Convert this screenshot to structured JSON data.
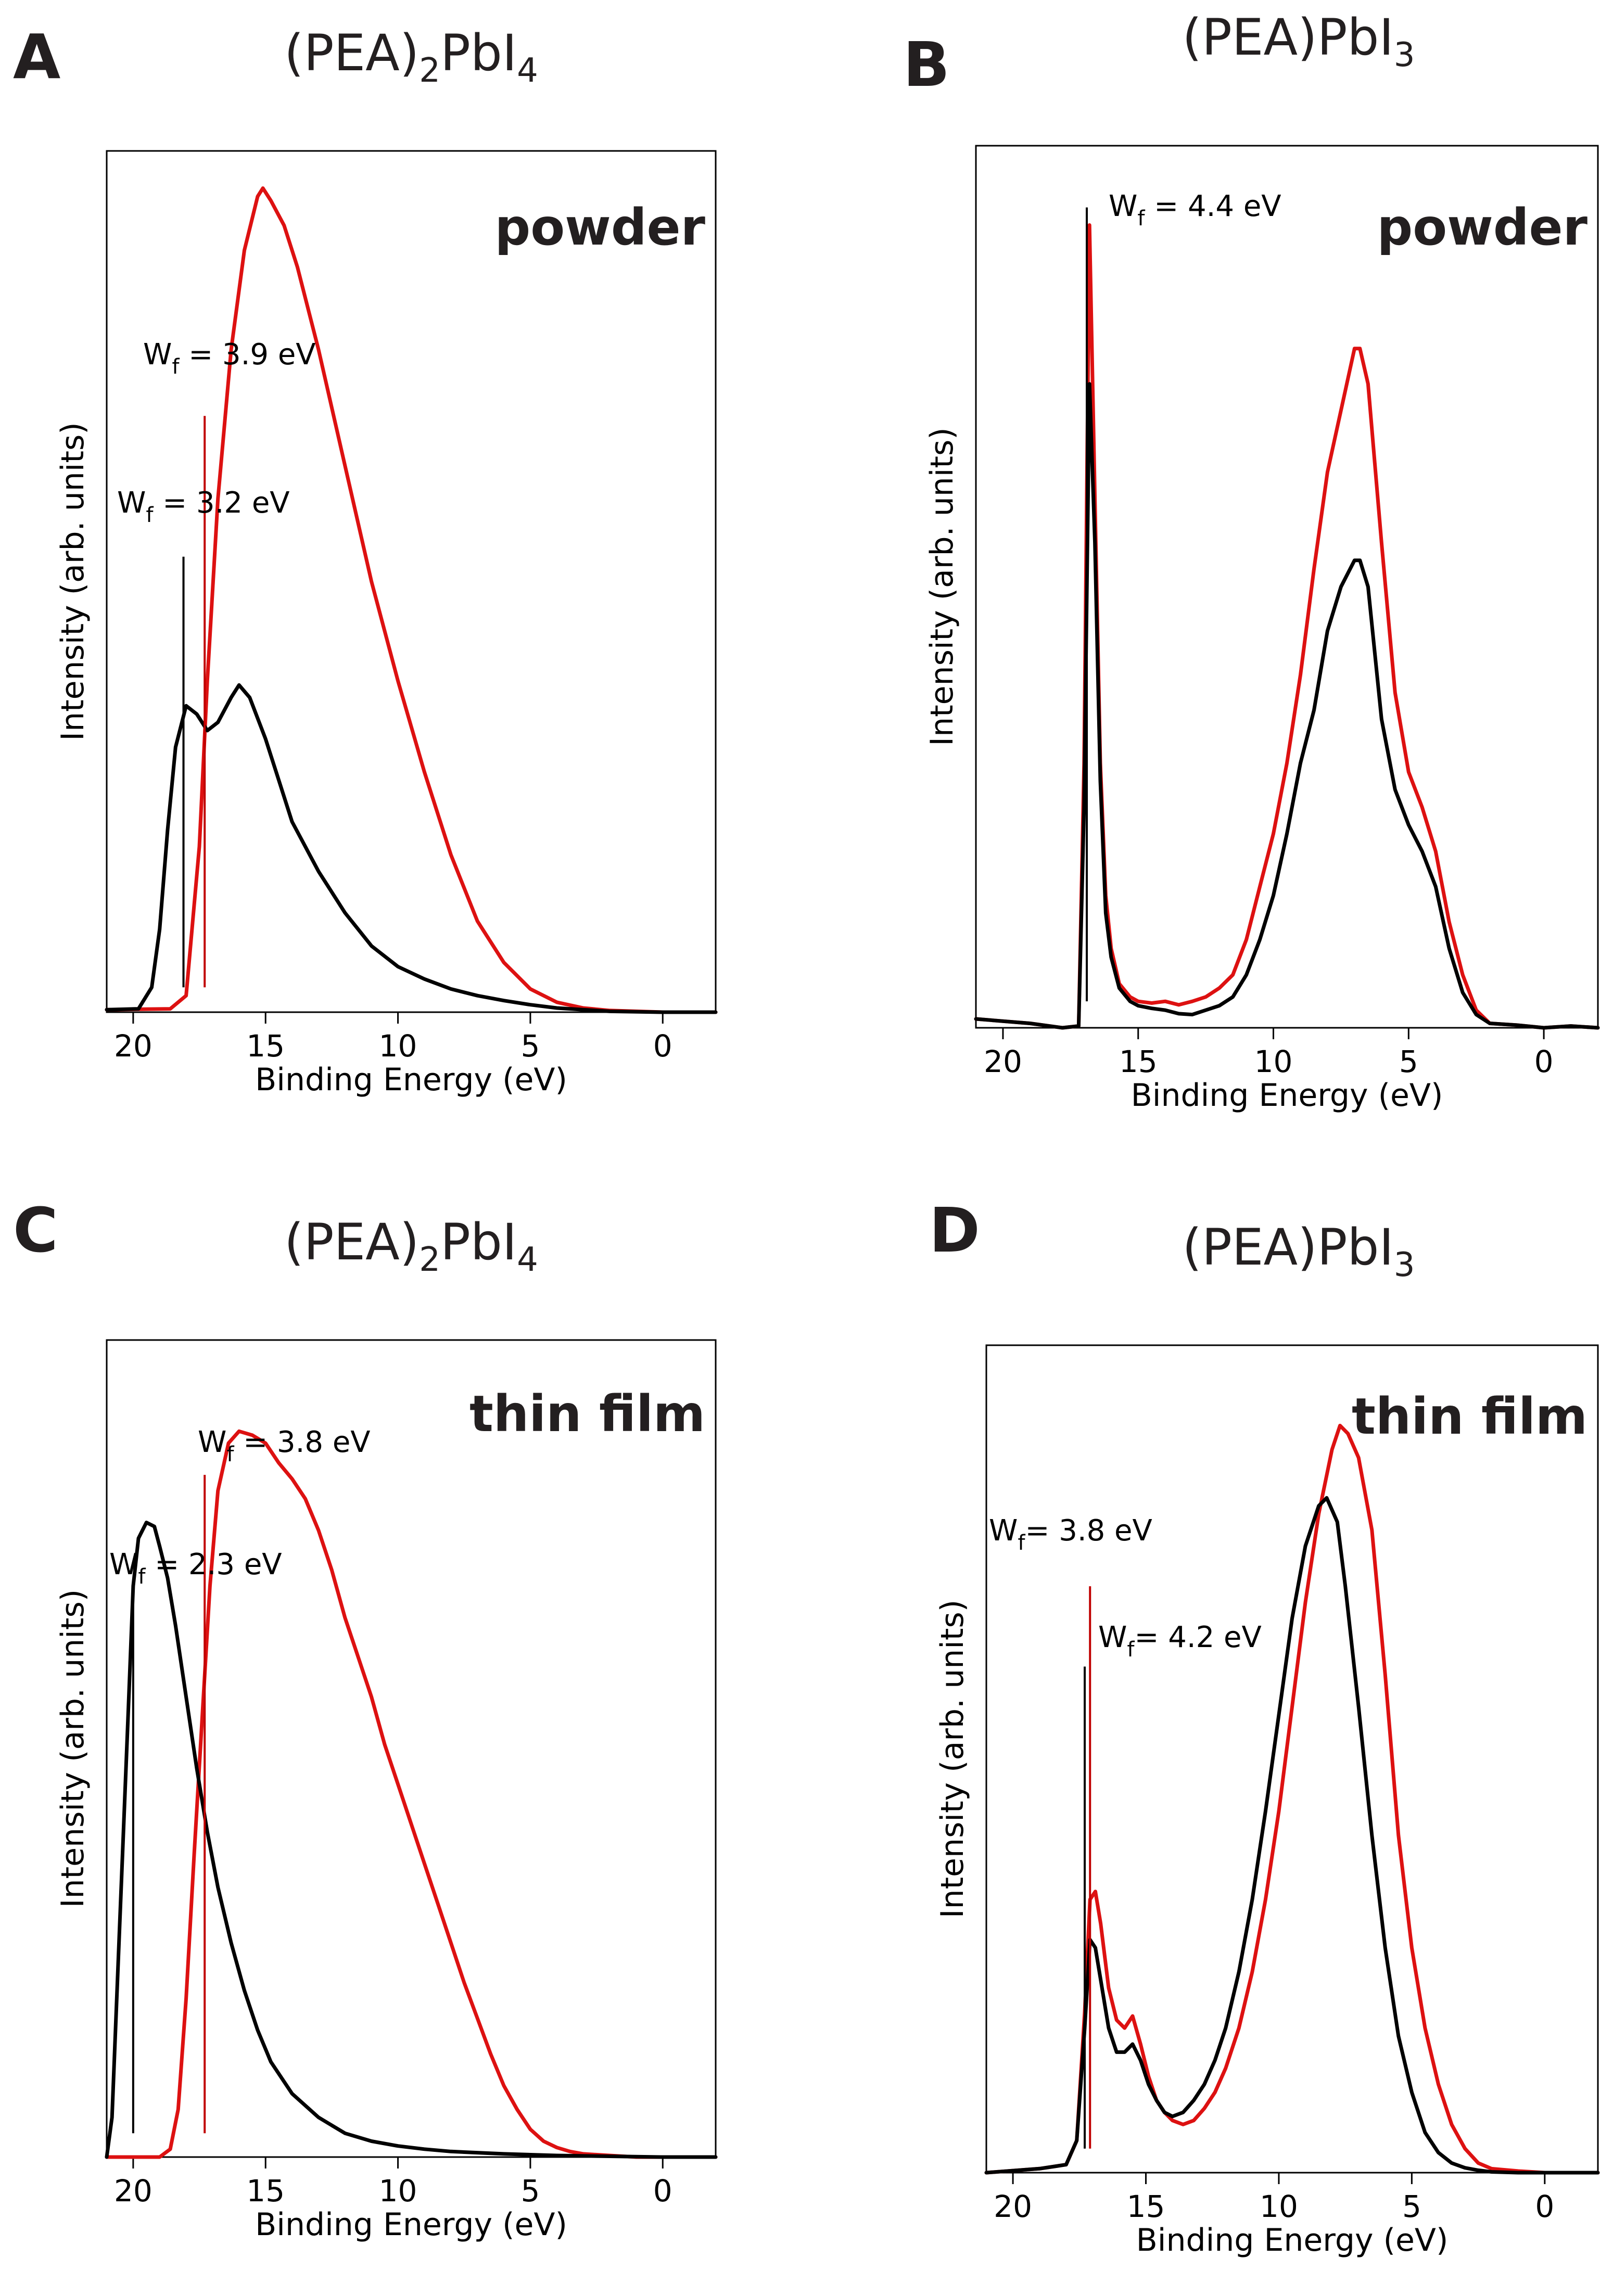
{
  "chart_data": [
    {
      "panel": "A",
      "type": "line",
      "title": "(PEA)2PbI4",
      "title_parts": [
        "(PEA)",
        "2",
        "PbI",
        "4"
      ],
      "sample": "powder",
      "xlabel": "Binding Energy (eV)",
      "ylabel": "Intensity (arb. units)",
      "xlim": [
        21,
        -2
      ],
      "ylim": [
        0,
        1.04
      ],
      "xticks": [
        20,
        15,
        10,
        5,
        0
      ],
      "x_reversed": true,
      "grid": false,
      "annotations": [
        {
          "text": "Wf = 3.9 eV",
          "parts": [
            "W",
            "f",
            " = 3.9 eV"
          ],
          "x": 17.3,
          "color": "#c00000",
          "line_top": 0.72
        },
        {
          "text": "Wf = 3.2 eV",
          "parts": [
            "W",
            "f",
            " = 3.2 eV"
          ],
          "x": 18.1,
          "color": "#000000",
          "line_top": 0.55
        }
      ],
      "series": [
        {
          "color": "#dd1111",
          "x": [
            21,
            18.6,
            18.0,
            17.5,
            17.2,
            16.8,
            16.3,
            15.8,
            15.3,
            15.1,
            14.8,
            14.3,
            13.8,
            13.0,
            12.0,
            11.0,
            10.0,
            9.0,
            8.0,
            7.0,
            6.0,
            5.0,
            4.0,
            3.0,
            2.0,
            0.0,
            -2.0
          ],
          "y": [
            0.003,
            0.004,
            0.02,
            0.2,
            0.4,
            0.62,
            0.8,
            0.92,
            0.985,
            0.995,
            0.98,
            0.95,
            0.9,
            0.8,
            0.66,
            0.52,
            0.4,
            0.29,
            0.19,
            0.11,
            0.06,
            0.028,
            0.012,
            0.005,
            0.002,
            0.0,
            0.0
          ]
        },
        {
          "color": "#000000",
          "x": [
            21,
            19.8,
            19.3,
            19.0,
            18.7,
            18.4,
            18.0,
            17.6,
            17.2,
            16.8,
            16.3,
            16.0,
            15.6,
            15.0,
            14.5,
            14.0,
            13.0,
            12.0,
            11.0,
            10.0,
            9.0,
            8.0,
            7.0,
            6.0,
            5.0,
            4.0,
            3.0,
            2.0,
            0.0,
            -2.0
          ],
          "y": [
            0.003,
            0.004,
            0.03,
            0.1,
            0.22,
            0.32,
            0.37,
            0.36,
            0.34,
            0.35,
            0.38,
            0.395,
            0.38,
            0.33,
            0.28,
            0.23,
            0.17,
            0.12,
            0.08,
            0.055,
            0.04,
            0.028,
            0.02,
            0.014,
            0.009,
            0.005,
            0.003,
            0.001,
            0.0,
            0.0
          ]
        }
      ]
    },
    {
      "panel": "B",
      "type": "line",
      "title": "(PEA)PbI3",
      "title_parts": [
        "(PEA)PbI",
        "3"
      ],
      "sample": "powder",
      "xlabel": "Binding Energy (eV)",
      "ylabel": "Intensity (arb. units)",
      "xlim": [
        21,
        -2
      ],
      "ylim": [
        0,
        1.0
      ],
      "xticks": [
        20,
        15,
        10,
        5,
        0
      ],
      "x_reversed": true,
      "grid": false,
      "annotations": [
        {
          "text": "Wf = 4.4 eV",
          "parts": [
            "W",
            "f",
            " = 4.4 eV"
          ],
          "x": 16.9,
          "color": "#000000",
          "line_top": 0.93
        }
      ],
      "series": [
        {
          "color": "#dd1111",
          "x": [
            21,
            19.0,
            17.8,
            17.2,
            17.0,
            16.8,
            16.6,
            16.4,
            16.2,
            16.0,
            15.7,
            15.3,
            15.0,
            14.5,
            14.0,
            13.5,
            13.0,
            12.5,
            12.0,
            11.5,
            11.0,
            10.5,
            10.0,
            9.5,
            9.0,
            8.5,
            8.0,
            7.5,
            7.0,
            6.8,
            6.5,
            6.0,
            5.5,
            5.0,
            4.5,
            4.0,
            3.5,
            3.0,
            2.5,
            2.0,
            1.0,
            0.0,
            -1.0,
            -2.0
          ],
          "y": [
            0.01,
            0.005,
            0.0,
            0.002,
            0.3,
            0.91,
            0.6,
            0.3,
            0.15,
            0.09,
            0.05,
            0.035,
            0.03,
            0.028,
            0.03,
            0.026,
            0.03,
            0.035,
            0.045,
            0.06,
            0.1,
            0.16,
            0.22,
            0.3,
            0.4,
            0.52,
            0.63,
            0.7,
            0.77,
            0.77,
            0.73,
            0.55,
            0.38,
            0.29,
            0.25,
            0.2,
            0.12,
            0.06,
            0.02,
            0.005,
            0.003,
            0.0,
            0.002,
            0.0
          ]
        },
        {
          "color": "#000000",
          "x": [
            21,
            19.0,
            17.8,
            17.2,
            17.0,
            16.8,
            16.6,
            16.4,
            16.2,
            16.0,
            15.7,
            15.3,
            15.0,
            14.5,
            14.0,
            13.5,
            13.0,
            12.5,
            12.0,
            11.5,
            11.0,
            10.5,
            10.0,
            9.5,
            9.0,
            8.5,
            8.0,
            7.5,
            7.0,
            6.8,
            6.5,
            6.0,
            5.5,
            5.0,
            4.5,
            4.0,
            3.5,
            3.0,
            2.5,
            2.0,
            1.0,
            0.0,
            -1.0,
            -2.0
          ],
          "y": [
            0.01,
            0.005,
            0.0,
            0.002,
            0.25,
            0.73,
            0.55,
            0.28,
            0.13,
            0.08,
            0.045,
            0.03,
            0.025,
            0.022,
            0.02,
            0.016,
            0.015,
            0.02,
            0.025,
            0.035,
            0.06,
            0.1,
            0.15,
            0.22,
            0.3,
            0.36,
            0.45,
            0.5,
            0.53,
            0.53,
            0.5,
            0.35,
            0.27,
            0.23,
            0.2,
            0.16,
            0.09,
            0.04,
            0.015,
            0.005,
            0.003,
            0.0,
            0.002,
            0.0
          ]
        }
      ]
    },
    {
      "panel": "C",
      "type": "line",
      "title": "(PEA)2PbI4",
      "title_parts": [
        "(PEA)",
        "2",
        "PbI",
        "4"
      ],
      "sample": "thin film",
      "xlabel": "Binding Energy (eV)",
      "ylabel": "Intensity (arb. units)",
      "xlim": [
        21,
        -2
      ],
      "ylim": [
        0,
        1.03
      ],
      "xticks": [
        20,
        15,
        10,
        5,
        0
      ],
      "x_reversed": true,
      "grid": false,
      "annotations": [
        {
          "text": "Wf = 3.8 eV",
          "parts": [
            "W",
            "f",
            " = 3.8 eV"
          ],
          "x": 17.3,
          "color": "#c00000",
          "line_top": 0.86
        },
        {
          "text": "Wf = 2.3 eV",
          "parts": [
            "W",
            "f",
            " = 2.3 eV"
          ],
          "x": 20.0,
          "color": "#000000",
          "line_top": 0.7
        }
      ],
      "series": [
        {
          "color": "#dd1111",
          "x": [
            21,
            19.0,
            18.6,
            18.3,
            18.0,
            17.7,
            17.4,
            17.1,
            16.8,
            16.4,
            16.0,
            15.5,
            15.0,
            14.5,
            14.0,
            13.5,
            13.0,
            12.5,
            12.0,
            11.5,
            11.0,
            10.5,
            10.0,
            9.5,
            9.0,
            8.5,
            8.0,
            7.5,
            7.0,
            6.5,
            6.0,
            5.5,
            5.0,
            4.5,
            4.0,
            3.5,
            3.0,
            2.0,
            1.0,
            0.0,
            -2.0
          ],
          "y": [
            0.0,
            0.0,
            0.01,
            0.06,
            0.2,
            0.38,
            0.55,
            0.72,
            0.84,
            0.9,
            0.915,
            0.91,
            0.9,
            0.875,
            0.855,
            0.83,
            0.79,
            0.74,
            0.68,
            0.63,
            0.58,
            0.52,
            0.47,
            0.42,
            0.37,
            0.32,
            0.27,
            0.22,
            0.175,
            0.13,
            0.09,
            0.06,
            0.035,
            0.02,
            0.012,
            0.007,
            0.004,
            0.002,
            0.0,
            0.0,
            0.0
          ]
        },
        {
          "color": "#000000",
          "x": [
            21,
            20.8,
            20.5,
            20.2,
            20.0,
            19.8,
            19.5,
            19.2,
            19.0,
            18.7,
            18.4,
            18.0,
            17.6,
            17.2,
            16.8,
            16.3,
            15.8,
            15.3,
            14.8,
            14.0,
            13.0,
            12.0,
            11.0,
            10.0,
            9.0,
            8.0,
            6.0,
            4.0,
            2.0,
            0.0,
            -2.0
          ],
          "y": [
            0.0,
            0.05,
            0.3,
            0.55,
            0.72,
            0.78,
            0.8,
            0.795,
            0.77,
            0.73,
            0.67,
            0.58,
            0.49,
            0.41,
            0.34,
            0.27,
            0.21,
            0.16,
            0.12,
            0.08,
            0.05,
            0.03,
            0.02,
            0.014,
            0.01,
            0.007,
            0.004,
            0.002,
            0.001,
            0.0,
            0.0
          ]
        }
      ]
    },
    {
      "panel": "D",
      "type": "line",
      "title": "(PEA)PbI3",
      "title_parts": [
        "(PEA)PbI",
        "3"
      ],
      "sample": "thin film",
      "xlabel": "Binding Energy (eV)",
      "ylabel": "Intensity (arb. units)",
      "xlim": [
        21,
        -2
      ],
      "ylim": [
        0,
        1.03
      ],
      "xticks": [
        20,
        15,
        10,
        5,
        0
      ],
      "x_reversed": true,
      "grid": false,
      "annotations": [
        {
          "text": "Wf= 3.8 eV",
          "parts": [
            "W",
            "f",
            "= 3.8 eV"
          ],
          "x": 17.1,
          "color": "#c00000",
          "line_top": 0.73,
          "label_row": 0
        },
        {
          "text": "Wf= 4.2 eV",
          "parts": [
            "W",
            "f",
            "= 4.2 eV"
          ],
          "x": 17.3,
          "color": "#000000",
          "line_top": 0.63,
          "label_row": 1
        }
      ],
      "series": [
        {
          "color": "#dd1111",
          "x": [
            21,
            19.0,
            18.0,
            17.6,
            17.3,
            17.1,
            16.9,
            16.7,
            16.4,
            16.1,
            15.8,
            15.5,
            15.2,
            14.9,
            14.6,
            14.3,
            14.0,
            13.6,
            13.2,
            12.8,
            12.4,
            12.0,
            11.5,
            11.0,
            10.5,
            10.0,
            9.5,
            9.0,
            8.5,
            8.0,
            7.7,
            7.4,
            7.0,
            6.5,
            6.0,
            5.5,
            5.0,
            4.5,
            4.0,
            3.5,
            3.0,
            2.5,
            2.0,
            1.0,
            0.0,
            -2.0
          ],
          "y": [
            0.0,
            0.005,
            0.01,
            0.04,
            0.2,
            0.34,
            0.35,
            0.31,
            0.23,
            0.19,
            0.18,
            0.195,
            0.16,
            0.12,
            0.09,
            0.075,
            0.065,
            0.06,
            0.065,
            0.08,
            0.1,
            0.13,
            0.18,
            0.25,
            0.34,
            0.45,
            0.58,
            0.71,
            0.82,
            0.9,
            0.93,
            0.92,
            0.89,
            0.8,
            0.62,
            0.42,
            0.28,
            0.18,
            0.11,
            0.06,
            0.03,
            0.012,
            0.005,
            0.002,
            0.0,
            0.0
          ]
        },
        {
          "color": "#000000",
          "x": [
            21,
            19.0,
            18.0,
            17.6,
            17.3,
            17.1,
            16.9,
            16.7,
            16.4,
            16.1,
            15.8,
            15.5,
            15.2,
            14.9,
            14.6,
            14.3,
            14.0,
            13.6,
            13.2,
            12.8,
            12.4,
            12.0,
            11.5,
            11.0,
            10.5,
            10.0,
            9.5,
            9.0,
            8.5,
            8.2,
            7.8,
            7.5,
            7.0,
            6.5,
            6.0,
            5.5,
            5.0,
            4.5,
            4.0,
            3.5,
            3.0,
            2.5,
            2.0,
            1.0,
            0.0,
            -2.0
          ],
          "y": [
            0.0,
            0.005,
            0.01,
            0.04,
            0.18,
            0.29,
            0.28,
            0.24,
            0.18,
            0.15,
            0.15,
            0.16,
            0.14,
            0.11,
            0.09,
            0.075,
            0.07,
            0.075,
            0.09,
            0.11,
            0.14,
            0.18,
            0.25,
            0.34,
            0.45,
            0.57,
            0.69,
            0.78,
            0.83,
            0.84,
            0.81,
            0.73,
            0.58,
            0.42,
            0.28,
            0.17,
            0.1,
            0.05,
            0.025,
            0.012,
            0.006,
            0.003,
            0.001,
            0.0,
            0.0,
            0.0
          ]
        }
      ]
    }
  ]
}
